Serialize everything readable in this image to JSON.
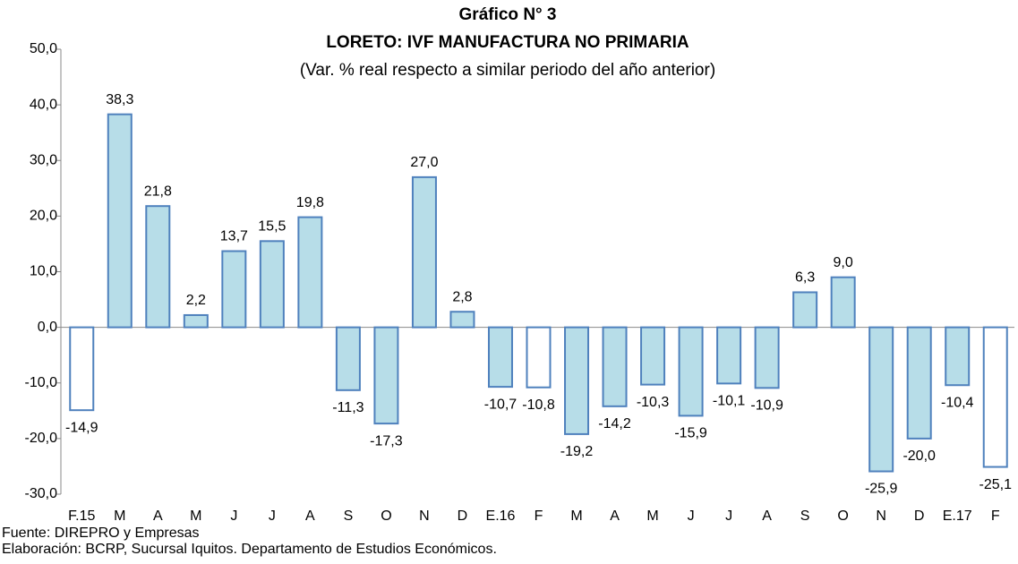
{
  "chart_data": {
    "type": "bar",
    "title": "Gráfico N° 3",
    "subtitle": "LORETO: IVF MANUFACTURA NO PRIMARIA",
    "note": "(Var. % real respecto a similar periodo del año anterior)",
    "categories": [
      "F.15",
      "M",
      "A",
      "M",
      "J",
      "J",
      "A",
      "S",
      "O",
      "N",
      "D",
      "E.16",
      "F",
      "M",
      "A",
      "M",
      "J",
      "J",
      "A",
      "S",
      "O",
      "N",
      "D",
      "E.17",
      "F"
    ],
    "values": [
      -14.9,
      38.3,
      21.8,
      2.2,
      13.7,
      15.5,
      19.8,
      -11.3,
      -17.3,
      27.0,
      2.8,
      -10.7,
      -10.8,
      -19.2,
      -14.2,
      -10.3,
      -15.9,
      -10.1,
      -10.9,
      6.3,
      9.0,
      -25.9,
      -20.0,
      -10.4,
      -25.1
    ],
    "value_labels": [
      "-14,9",
      "38,3",
      "21,8",
      "2,2",
      "13,7",
      "15,5",
      "19,8",
      "-11,3",
      "-17,3",
      "27,0",
      "2,8",
      "-10,7",
      "-10,8",
      "-19,2",
      "-14,2",
      "-10,3",
      "-15,9",
      "-10,1",
      "-10,9",
      "6,3",
      "9,0",
      "-25,9",
      "-20,0",
      "-10,4",
      "-25,1"
    ],
    "colors": [
      "#ffffff",
      "#b7dde8",
      "#b7dde8",
      "#b7dde8",
      "#b7dde8",
      "#b7dde8",
      "#b7dde8",
      "#b7dde8",
      "#b7dde8",
      "#b7dde8",
      "#b7dde8",
      "#b7dde8",
      "#ffffff",
      "#b7dde8",
      "#b7dde8",
      "#b7dde8",
      "#b7dde8",
      "#b7dde8",
      "#b7dde8",
      "#b7dde8",
      "#b7dde8",
      "#b7dde8",
      "#b7dde8",
      "#b7dde8",
      "#ffffff"
    ],
    "edge_color": "#4f81bd",
    "ylim": [
      -30,
      50
    ],
    "yticks": [
      {
        "value": -30,
        "label": "-30,0"
      },
      {
        "value": -20,
        "label": "-20,0"
      },
      {
        "value": -10,
        "label": "-10,0"
      },
      {
        "value": 0,
        "label": "0,0"
      },
      {
        "value": 10,
        "label": "10,0"
      },
      {
        "value": 20,
        "label": "20,0"
      },
      {
        "value": 30,
        "label": "30,0"
      },
      {
        "value": 40,
        "label": "40,0"
      },
      {
        "value": 50,
        "label": "50,0"
      }
    ],
    "grid": false,
    "source": "Fuente: DIREPRO y Empresas",
    "credit": "Elaboración: BCRP, Sucursal Iquitos. Departamento de Estudios Económicos."
  }
}
